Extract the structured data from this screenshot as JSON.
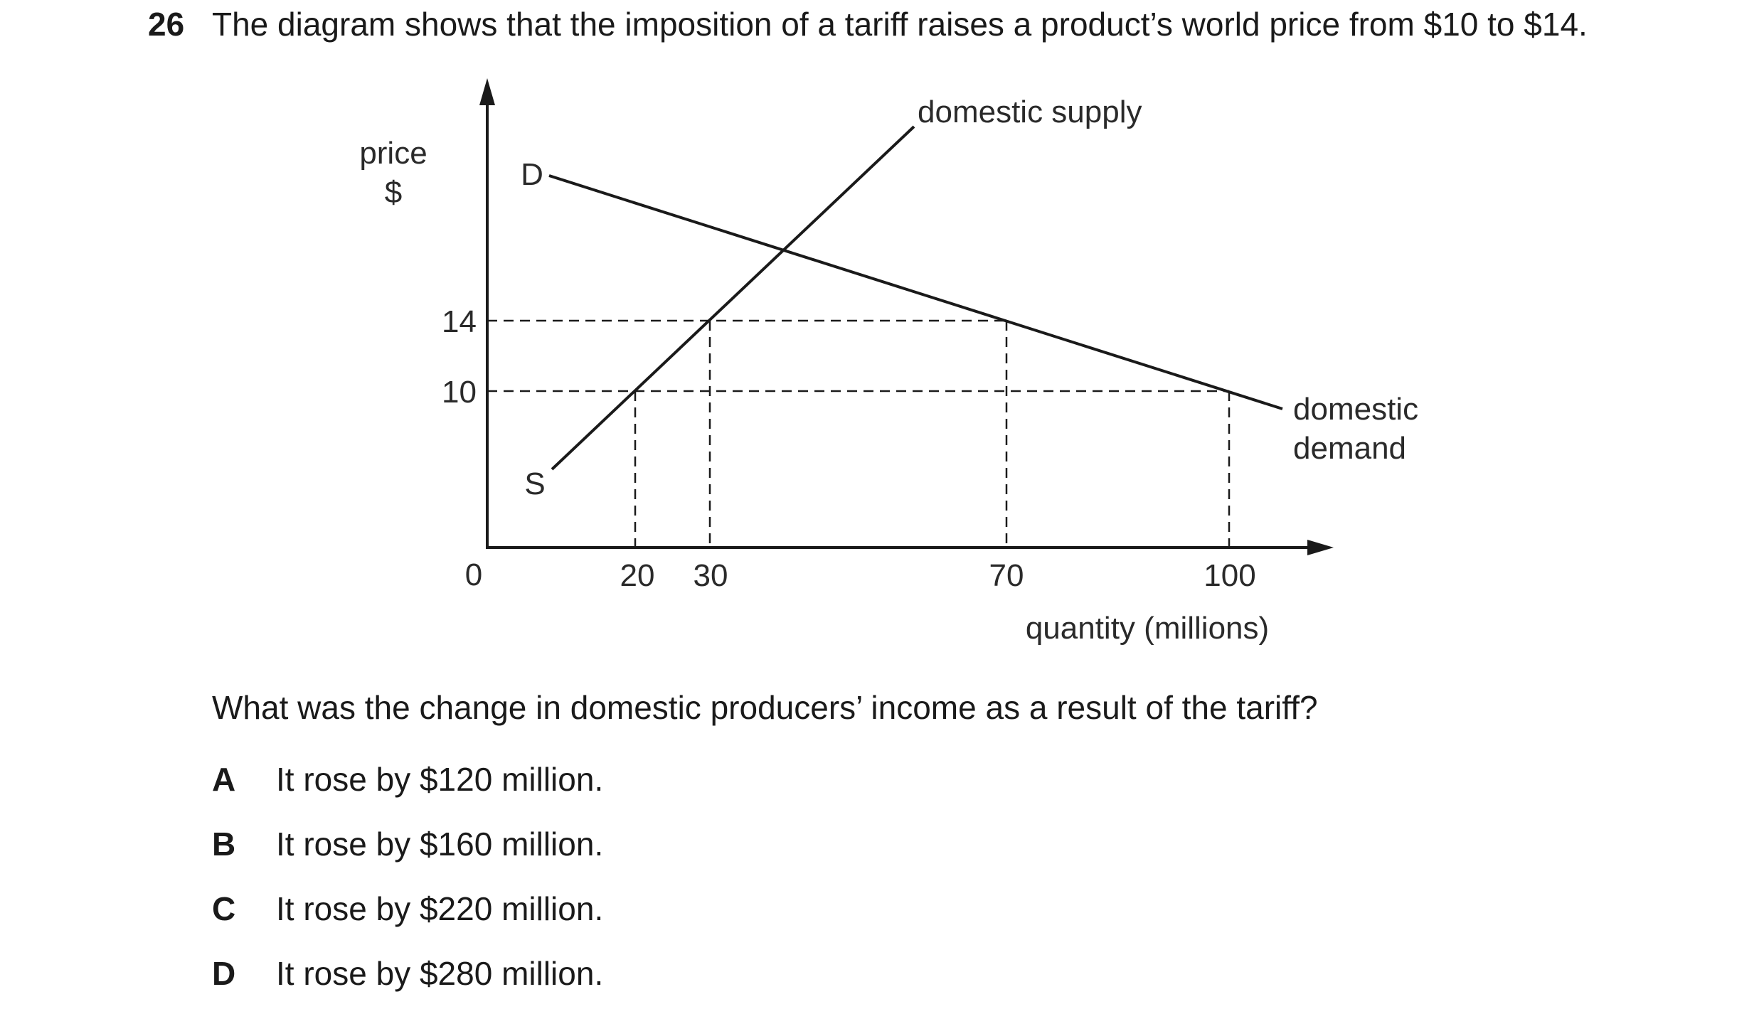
{
  "question": {
    "number": "26",
    "text": "The diagram shows that the imposition of a tariff raises a product’s world price from $10 to $14.",
    "prompt": "What was the change in domestic producers’ income as a result of the tariff?",
    "options": [
      {
        "letter": "A",
        "text": "It rose by $120 million."
      },
      {
        "letter": "B",
        "text": "It rose by $160 million."
      },
      {
        "letter": "C",
        "text": "It rose by $220 million."
      },
      {
        "letter": "D",
        "text": "It rose by $280 million."
      }
    ]
  },
  "diagram": {
    "y_label_line1": "price",
    "y_label_line2": "$",
    "x_label": "quantity (millions)",
    "origin_label": "0",
    "y_ticks": [
      "14",
      "10"
    ],
    "x_ticks": [
      "20",
      "30",
      "70",
      "100"
    ],
    "demand_label_short": "D",
    "supply_label_short": "S",
    "supply_label": "domestic supply",
    "demand_label_line1": "domestic",
    "demand_label_line2": "demand"
  },
  "chart_data": {
    "type": "line",
    "xlabel": "quantity (millions)",
    "ylabel": "price $",
    "y_ticks": [
      10,
      14
    ],
    "x_ticks": [
      20,
      30,
      70,
      100
    ],
    "series": [
      {
        "name": "domestic supply",
        "points": [
          [
            20,
            10
          ],
          [
            30,
            14
          ]
        ]
      },
      {
        "name": "domestic demand",
        "points": [
          [
            70,
            14
          ],
          [
            100,
            10
          ]
        ]
      }
    ],
    "reference_lines": [
      {
        "price": 14,
        "quantities": [
          30,
          70
        ]
      },
      {
        "price": 10,
        "quantities": [
          20,
          100
        ]
      }
    ]
  }
}
